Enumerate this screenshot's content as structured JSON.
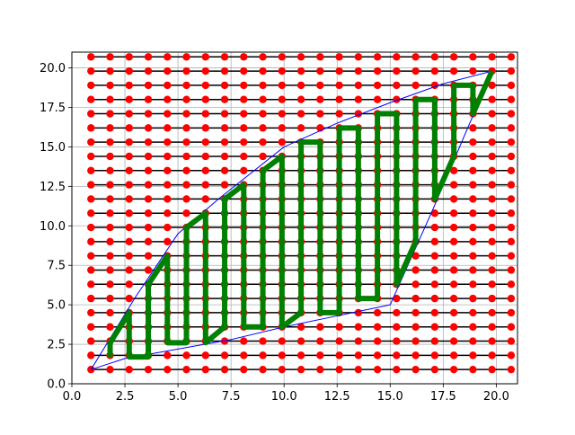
{
  "chart_data": {
    "type": "line",
    "xlim": [
      0,
      21
    ],
    "ylim": [
      0,
      21
    ],
    "xticks": [
      {
        "value": 0,
        "label": "0.0"
      },
      {
        "value": 2.5,
        "label": "2.5"
      },
      {
        "value": 5,
        "label": "5.0"
      },
      {
        "value": 7.5,
        "label": "7.5"
      },
      {
        "value": 10,
        "label": "10.0"
      },
      {
        "value": 12.5,
        "label": "12.5"
      },
      {
        "value": 15,
        "label": "15.0"
      },
      {
        "value": 17.5,
        "label": "17.5"
      },
      {
        "value": 20,
        "label": "20.0"
      }
    ],
    "yticks": [
      {
        "value": 0,
        "label": "0.0"
      },
      {
        "value": 2.5,
        "label": "2.5"
      },
      {
        "value": 5,
        "label": "5.0"
      },
      {
        "value": 7.5,
        "label": "7.5"
      },
      {
        "value": 10,
        "label": "10.0"
      },
      {
        "value": 12.5,
        "label": "12.5"
      },
      {
        "value": 15,
        "label": "15.0"
      },
      {
        "value": 17.5,
        "label": "17.5"
      },
      {
        "value": 20,
        "label": "20.0"
      }
    ],
    "grid": true,
    "mesh": {
      "marker_color": "red",
      "line_color": "black",
      "x": [
        0.9,
        1.8,
        2.7,
        3.6,
        4.5,
        5.4,
        6.3,
        7.2,
        8.1,
        9.0,
        9.9,
        10.8,
        11.7,
        12.6,
        13.5,
        14.4,
        15.3,
        16.2,
        17.1,
        18.0,
        18.9,
        19.8,
        20.7
      ],
      "y": [
        0.9,
        1.8,
        2.7,
        3.6,
        4.5,
        5.4,
        6.3,
        7.2,
        8.1,
        9.0,
        9.9,
        10.8,
        11.7,
        12.6,
        13.5,
        14.4,
        15.3,
        16.2,
        17.1,
        18.0,
        18.9,
        19.8,
        20.7
      ]
    },
    "series": [
      {
        "color": "blue",
        "width": 1,
        "x": [
          0.9,
          3,
          5,
          7,
          10,
          12.5,
          15,
          17.5,
          19.8,
          17,
          15,
          12.5,
          10,
          7.5,
          5,
          2.5,
          0.9
        ],
        "values": [
          0.9,
          5.5,
          9.5,
          11.8,
          15,
          16.5,
          17.8,
          19,
          19.8,
          11,
          5,
          4.3,
          3.6,
          2.8,
          2.2,
          1.6,
          0.9
        ]
      },
      {
        "color": "green",
        "width": 6,
        "x": [
          1.8,
          1.8,
          2.7,
          2.7,
          3.6,
          3.6,
          4.5,
          4.5,
          5.4,
          5.4,
          6.3,
          6.3,
          7.2,
          7.2,
          8.1,
          8.1,
          9.0,
          9.0,
          9.9,
          9.9,
          10.8,
          10.8,
          11.7,
          11.7,
          12.6,
          12.6,
          13.5,
          13.5,
          14.4,
          14.4,
          15.3,
          15.3,
          16.2,
          16.2,
          17.1,
          17.1,
          18.0,
          18.0,
          18.9,
          18.9,
          19.8
        ],
        "values": [
          1.7,
          2.6,
          4.5,
          1.7,
          1.7,
          6.3,
          8.1,
          2.6,
          2.6,
          9.9,
          10.8,
          2.6,
          3.6,
          11.7,
          12.6,
          3.6,
          3.6,
          13.5,
          14.4,
          3.6,
          4.5,
          15.3,
          15.3,
          4.5,
          4.5,
          16.2,
          16.2,
          5.4,
          5.4,
          17.1,
          17.1,
          6.3,
          9.0,
          18.0,
          18.0,
          11.7,
          14.4,
          18.9,
          18.9,
          17.1,
          19.8
        ]
      }
    ]
  }
}
